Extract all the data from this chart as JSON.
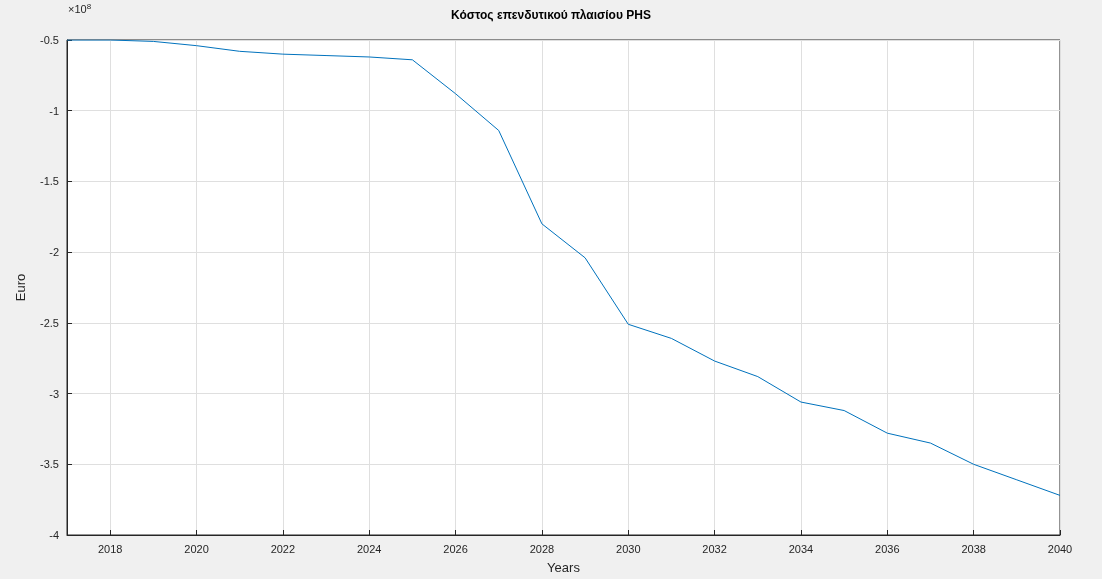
{
  "chart_data": {
    "type": "line",
    "title": "Κόστος επενδυτικού πλαισίου PHS",
    "xlabel": "Years",
    "ylabel": "Euro",
    "annotations": [
      "×10$^{8}$"
    ],
    "x": [
      2017,
      2018,
      2019,
      2020,
      2021,
      2022,
      2023,
      2024,
      2025,
      2026,
      2027,
      2028,
      2029,
      2030,
      2031,
      2032,
      2033,
      2034,
      2035,
      2036,
      2037,
      2038,
      2039,
      2040
    ],
    "series": [
      {
        "color": "#0072bd",
        "values": [
          -0.5,
          -0.5,
          -0.51,
          -0.54,
          -0.58,
          -0.6,
          -0.61,
          -0.62,
          -0.64,
          -0.88,
          -1.14,
          -1.8,
          -2.04,
          -2.51,
          -2.61,
          -2.77,
          -2.88,
          -3.06,
          -3.12,
          -3.28,
          -3.35,
          -3.5,
          -3.61,
          -3.72
        ]
      }
    ],
    "xlim": [
      2017,
      2040
    ],
    "xticks": [
      2018,
      2020,
      2022,
      2024,
      2026,
      2028,
      2030,
      2032,
      2034,
      2036,
      2038,
      2040
    ],
    "ylim": [
      -4,
      -0.5
    ],
    "yticks": [
      -4,
      -3.5,
      -3,
      -2.5,
      -2,
      -1.5,
      -1,
      -0.5
    ],
    "grid": true,
    "marker": "none",
    "line_style": "solid"
  }
}
